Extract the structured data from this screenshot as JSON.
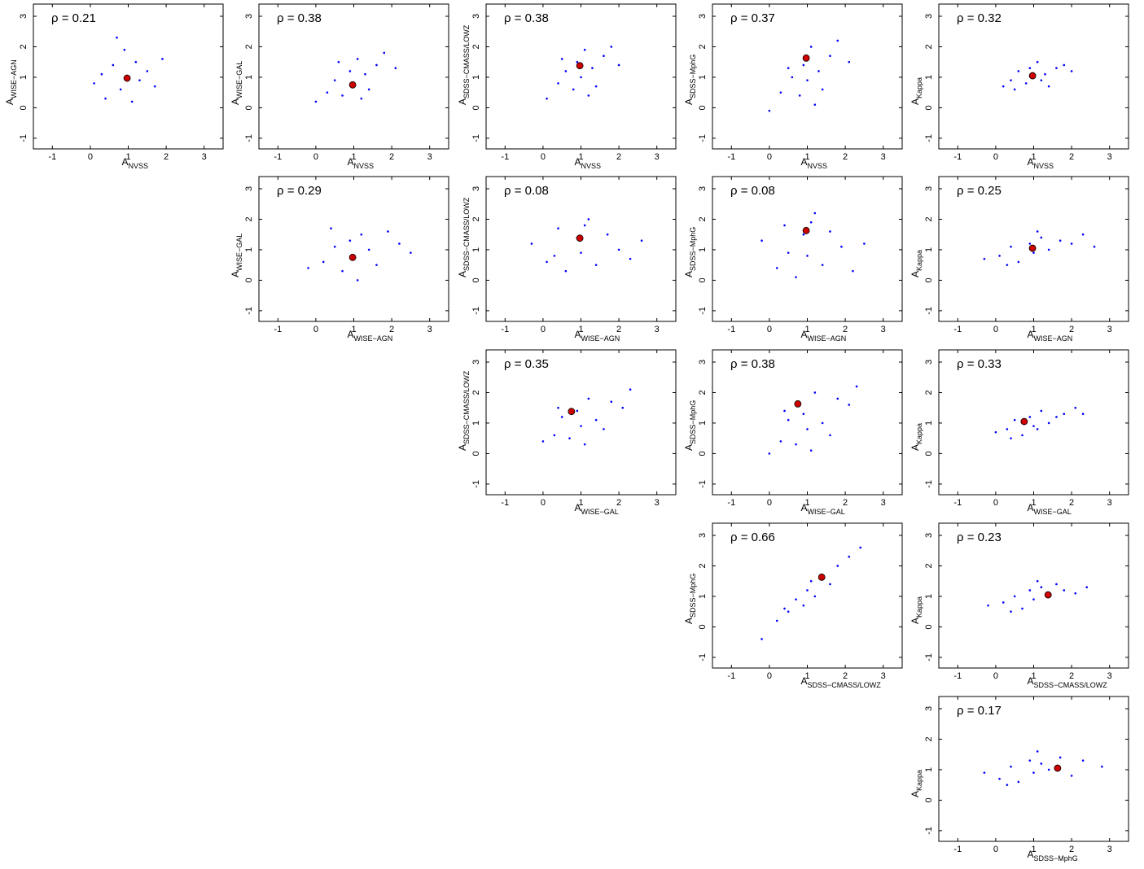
{
  "chart_data": [
    {
      "type": "scatter",
      "annotation": "ρ = 0.21",
      "xlabel": {
        "text": "A",
        "sub": "NVSS"
      },
      "ylabel": {
        "text": "A",
        "sub": "WISE−AGN"
      },
      "xlim": [
        -1.5,
        3.5
      ],
      "ylim": [
        -1.35,
        3.4
      ],
      "xticks": [
        -1,
        0,
        1,
        2,
        3
      ],
      "yticks": [
        -1,
        0,
        1,
        2,
        3
      ],
      "series": [
        {
          "color": "#0000ff",
          "x": [
            0.1,
            0.4,
            0.6,
            0.8,
            0.9,
            1.0,
            1.1,
            1.2,
            1.3,
            1.5,
            1.7,
            0.3,
            0.7,
            1.9
          ],
          "y": [
            0.8,
            0.3,
            1.4,
            0.6,
            1.9,
            1.0,
            0.2,
            1.5,
            0.9,
            1.2,
            0.7,
            1.1,
            2.3,
            1.6
          ]
        },
        {
          "color": "#cc0000",
          "x": [
            0.97
          ],
          "y": [
            0.97
          ]
        }
      ]
    },
    {
      "type": "scatter",
      "annotation": "ρ = 0.38",
      "xlabel": {
        "text": "A",
        "sub": "NVSS"
      },
      "ylabel": {
        "text": "A",
        "sub": "WISE−GAL"
      },
      "xlim": [
        -1.5,
        3.5
      ],
      "ylim": [
        -1.35,
        3.4
      ],
      "xticks": [
        -1,
        0,
        1,
        2,
        3
      ],
      "yticks": [
        -1,
        0,
        1,
        2,
        3
      ],
      "series": [
        {
          "color": "#0000ff",
          "x": [
            0.0,
            0.3,
            0.5,
            0.7,
            0.9,
            1.0,
            1.1,
            1.3,
            1.4,
            1.6,
            1.8,
            0.6,
            1.2,
            2.1
          ],
          "y": [
            0.2,
            0.5,
            0.9,
            0.4,
            1.2,
            0.8,
            1.6,
            1.1,
            0.6,
            1.4,
            1.8,
            1.5,
            0.3,
            1.3
          ]
        },
        {
          "color": "#cc0000",
          "x": [
            0.97
          ],
          "y": [
            0.75
          ]
        }
      ]
    },
    {
      "type": "scatter",
      "annotation": "ρ = 0.38",
      "xlabel": {
        "text": "A",
        "sub": "NVSS"
      },
      "ylabel": {
        "text": "A",
        "sub": "SDSS−CMASS/LOWZ"
      },
      "xlim": [
        -1.5,
        3.5
      ],
      "ylim": [
        -1.35,
        3.4
      ],
      "xticks": [
        -1,
        0,
        1,
        2,
        3
      ],
      "yticks": [
        -1,
        0,
        1,
        2,
        3
      ],
      "series": [
        {
          "color": "#0000ff",
          "x": [
            0.1,
            0.4,
            0.6,
            0.8,
            0.9,
            1.0,
            1.1,
            1.3,
            1.4,
            1.6,
            1.8,
            0.5,
            1.2,
            2.0
          ],
          "y": [
            0.3,
            0.8,
            1.2,
            0.6,
            1.5,
            1.0,
            1.9,
            1.3,
            0.7,
            1.7,
            2.0,
            1.6,
            0.4,
            1.4
          ]
        },
        {
          "color": "#cc0000",
          "x": [
            0.97
          ],
          "y": [
            1.38
          ]
        }
      ]
    },
    {
      "type": "scatter",
      "annotation": "ρ = 0.37",
      "xlabel": {
        "text": "A",
        "sub": "NVSS"
      },
      "ylabel": {
        "text": "A",
        "sub": "SDSS−MphG"
      },
      "xlim": [
        -1.5,
        3.5
      ],
      "ylim": [
        -1.35,
        3.4
      ],
      "xticks": [
        -1,
        0,
        1,
        2,
        3
      ],
      "yticks": [
        -1,
        0,
        1,
        2,
        3
      ],
      "series": [
        {
          "color": "#0000ff",
          "x": [
            0.0,
            0.3,
            0.6,
            0.8,
            0.9,
            1.0,
            1.1,
            1.3,
            1.4,
            1.6,
            1.8,
            0.5,
            1.2,
            2.1
          ],
          "y": [
            -0.1,
            0.5,
            1.0,
            0.4,
            1.4,
            0.9,
            2.0,
            1.2,
            0.6,
            1.7,
            2.2,
            1.3,
            0.1,
            1.5
          ]
        },
        {
          "color": "#cc0000",
          "x": [
            0.97
          ],
          "y": [
            1.63
          ]
        }
      ]
    },
    {
      "type": "scatter",
      "annotation": "ρ = 0.32",
      "xlabel": {
        "text": "A",
        "sub": "NVSS"
      },
      "ylabel": {
        "text": "A",
        "sub": "Kappa"
      },
      "xlim": [
        -1.5,
        3.5
      ],
      "ylim": [
        -1.35,
        3.4
      ],
      "xticks": [
        -1,
        0,
        1,
        2,
        3
      ],
      "yticks": [
        -1,
        0,
        1,
        2,
        3
      ],
      "series": [
        {
          "color": "#0000ff",
          "x": [
            0.2,
            0.4,
            0.6,
            0.8,
            0.9,
            1.0,
            1.1,
            1.3,
            1.4,
            1.6,
            1.8,
            0.5,
            1.2,
            2.0
          ],
          "y": [
            0.7,
            0.9,
            1.2,
            0.8,
            1.3,
            1.0,
            1.5,
            1.1,
            0.7,
            1.3,
            1.4,
            0.6,
            0.9,
            1.2
          ]
        },
        {
          "color": "#cc0000",
          "x": [
            0.97
          ],
          "y": [
            1.05
          ]
        }
      ]
    },
    {
      "type": "scatter",
      "annotation": "ρ = 0.29",
      "xlabel": {
        "text": "A",
        "sub": "WISE−AGN"
      },
      "ylabel": {
        "text": "A",
        "sub": "WISE−GAL"
      },
      "xlim": [
        -1.5,
        3.5
      ],
      "ylim": [
        -1.35,
        3.4
      ],
      "xticks": [
        -1,
        0,
        1,
        2,
        3
      ],
      "yticks": [
        -1,
        0,
        1,
        2,
        3
      ],
      "series": [
        {
          "color": "#0000ff",
          "x": [
            -0.2,
            0.2,
            0.5,
            0.7,
            0.9,
            1.0,
            1.2,
            1.4,
            1.6,
            1.9,
            2.2,
            0.4,
            1.1,
            2.5
          ],
          "y": [
            0.4,
            0.6,
            1.1,
            0.3,
            1.3,
            0.8,
            1.5,
            1.0,
            0.5,
            1.6,
            1.2,
            1.7,
            0.0,
            0.9
          ]
        },
        {
          "color": "#cc0000",
          "x": [
            0.97
          ],
          "y": [
            0.75
          ]
        }
      ]
    },
    {
      "type": "scatter",
      "annotation": "ρ = 0.08",
      "xlabel": {
        "text": "A",
        "sub": "WISE−AGN"
      },
      "ylabel": {
        "text": "A",
        "sub": "SDSS−CMASS/LOWZ"
      },
      "xlim": [
        -1.5,
        3.5
      ],
      "ylim": [
        -1.35,
        3.4
      ],
      "xticks": [
        -1,
        0,
        1,
        2,
        3
      ],
      "yticks": [
        -1,
        0,
        1,
        2,
        3
      ],
      "series": [
        {
          "color": "#0000ff",
          "x": [
            -0.3,
            0.1,
            0.4,
            0.6,
            0.9,
            1.0,
            1.2,
            1.4,
            1.7,
            2.0,
            2.3,
            0.3,
            1.1,
            2.6
          ],
          "y": [
            1.2,
            0.6,
            1.7,
            0.3,
            1.4,
            0.9,
            2.0,
            0.5,
            1.5,
            1.0,
            0.7,
            0.8,
            1.8,
            1.3
          ]
        },
        {
          "color": "#cc0000",
          "x": [
            0.97
          ],
          "y": [
            1.38
          ]
        }
      ]
    },
    {
      "type": "scatter",
      "annotation": "ρ = 0.08",
      "xlabel": {
        "text": "A",
        "sub": "WISE−AGN"
      },
      "ylabel": {
        "text": "A",
        "sub": "SDSS−MphG"
      },
      "xlim": [
        -1.5,
        3.5
      ],
      "ylim": [
        -1.35,
        3.4
      ],
      "xticks": [
        -1,
        0,
        1,
        2,
        3
      ],
      "yticks": [
        -1,
        0,
        1,
        2,
        3
      ],
      "series": [
        {
          "color": "#0000ff",
          "x": [
            -0.2,
            0.2,
            0.4,
            0.7,
            0.9,
            1.0,
            1.2,
            1.4,
            1.6,
            1.9,
            2.2,
            0.5,
            1.1,
            2.5
          ],
          "y": [
            1.3,
            0.4,
            1.8,
            0.1,
            1.5,
            0.8,
            2.2,
            0.5,
            1.6,
            1.1,
            0.3,
            0.9,
            1.9,
            1.2
          ]
        },
        {
          "color": "#cc0000",
          "x": [
            0.97
          ],
          "y": [
            1.63
          ]
        }
      ]
    },
    {
      "type": "scatter",
      "annotation": "ρ = 0.25",
      "xlabel": {
        "text": "A",
        "sub": "WISE−AGN"
      },
      "ylabel": {
        "text": "A",
        "sub": "Kappa"
      },
      "xlim": [
        -1.5,
        3.5
      ],
      "ylim": [
        -1.35,
        3.4
      ],
      "xticks": [
        -1,
        0,
        1,
        2,
        3
      ],
      "yticks": [
        -1,
        0,
        1,
        2,
        3
      ],
      "series": [
        {
          "color": "#0000ff",
          "x": [
            -0.3,
            0.1,
            0.4,
            0.6,
            0.9,
            1.0,
            1.2,
            1.4,
            1.7,
            2.0,
            2.3,
            0.3,
            1.1,
            2.6
          ],
          "y": [
            0.7,
            0.8,
            1.1,
            0.6,
            1.2,
            0.9,
            1.4,
            1.0,
            1.3,
            1.2,
            1.5,
            0.5,
            1.6,
            1.1
          ]
        },
        {
          "color": "#cc0000",
          "x": [
            0.97
          ],
          "y": [
            1.05
          ]
        }
      ]
    },
    {
      "type": "scatter",
      "annotation": "ρ = 0.35",
      "xlabel": {
        "text": "A",
        "sub": "WISE−GAL"
      },
      "ylabel": {
        "text": "A",
        "sub": "SDSS−CMASS/LOWZ"
      },
      "xlim": [
        -1.5,
        3.5
      ],
      "ylim": [
        -1.35,
        3.4
      ],
      "xticks": [
        -1,
        0,
        1,
        2,
        3
      ],
      "yticks": [
        -1,
        0,
        1,
        2,
        3
      ],
      "series": [
        {
          "color": "#0000ff",
          "x": [
            0.0,
            0.3,
            0.5,
            0.7,
            0.9,
            1.0,
            1.2,
            1.4,
            1.6,
            1.8,
            2.1,
            0.4,
            1.1,
            2.3
          ],
          "y": [
            0.4,
            0.6,
            1.2,
            0.5,
            1.4,
            0.9,
            1.8,
            1.1,
            0.8,
            1.7,
            1.5,
            1.5,
            0.3,
            2.1
          ]
        },
        {
          "color": "#cc0000",
          "x": [
            0.75
          ],
          "y": [
            1.38
          ]
        }
      ]
    },
    {
      "type": "scatter",
      "annotation": "ρ = 0.38",
      "xlabel": {
        "text": "A",
        "sub": "WISE−GAL"
      },
      "ylabel": {
        "text": "A",
        "sub": "SDSS−MphG"
      },
      "xlim": [
        -1.5,
        3.5
      ],
      "ylim": [
        -1.35,
        3.4
      ],
      "xticks": [
        -1,
        0,
        1,
        2,
        3
      ],
      "yticks": [
        -1,
        0,
        1,
        2,
        3
      ],
      "series": [
        {
          "color": "#0000ff",
          "x": [
            0.0,
            0.3,
            0.5,
            0.7,
            0.9,
            1.0,
            1.2,
            1.4,
            1.6,
            1.8,
            2.1,
            0.4,
            1.1,
            2.3
          ],
          "y": [
            0.0,
            0.4,
            1.1,
            0.3,
            1.3,
            0.8,
            2.0,
            1.0,
            0.6,
            1.8,
            1.6,
            1.4,
            0.1,
            2.2
          ]
        },
        {
          "color": "#cc0000",
          "x": [
            0.75
          ],
          "y": [
            1.63
          ]
        }
      ]
    },
    {
      "type": "scatter",
      "annotation": "ρ = 0.33",
      "xlabel": {
        "text": "A",
        "sub": "WISE−GAL"
      },
      "ylabel": {
        "text": "A",
        "sub": "Kappa"
      },
      "xlim": [
        -1.5,
        3.5
      ],
      "ylim": [
        -1.35,
        3.4
      ],
      "xticks": [
        -1,
        0,
        1,
        2,
        3
      ],
      "yticks": [
        -1,
        0,
        1,
        2,
        3
      ],
      "series": [
        {
          "color": "#0000ff",
          "x": [
            0.0,
            0.3,
            0.5,
            0.7,
            0.9,
            1.0,
            1.2,
            1.4,
            1.6,
            1.8,
            2.1,
            0.4,
            1.1,
            2.3
          ],
          "y": [
            0.7,
            0.8,
            1.1,
            0.6,
            1.2,
            0.9,
            1.4,
            1.0,
            1.2,
            1.3,
            1.5,
            0.5,
            0.8,
            1.3
          ]
        },
        {
          "color": "#cc0000",
          "x": [
            0.75
          ],
          "y": [
            1.05
          ]
        }
      ]
    },
    {
      "type": "scatter",
      "annotation": "ρ = 0.66",
      "xlabel": {
        "text": "A",
        "sub": "SDSS−CMASS/LOWZ"
      },
      "ylabel": {
        "text": "A",
        "sub": "SDSS−MphG"
      },
      "xlim": [
        -1.5,
        3.5
      ],
      "ylim": [
        -1.35,
        3.4
      ],
      "xticks": [
        -1,
        0,
        1,
        2,
        3
      ],
      "yticks": [
        -1,
        0,
        1,
        2,
        3
      ],
      "series": [
        {
          "color": "#0000ff",
          "x": [
            -0.2,
            0.2,
            0.5,
            0.7,
            0.9,
            1.0,
            1.2,
            1.4,
            1.6,
            1.8,
            2.1,
            0.4,
            1.1,
            2.4
          ],
          "y": [
            -0.4,
            0.2,
            0.5,
            0.9,
            0.7,
            1.2,
            1.0,
            1.6,
            1.4,
            2.0,
            2.3,
            0.6,
            1.5,
            2.6
          ]
        },
        {
          "color": "#cc0000",
          "x": [
            1.38
          ],
          "y": [
            1.63
          ]
        }
      ]
    },
    {
      "type": "scatter",
      "annotation": "ρ = 0.23",
      "xlabel": {
        "text": "A",
        "sub": "SDSS−CMASS/LOWZ"
      },
      "ylabel": {
        "text": "A",
        "sub": "Kappa"
      },
      "xlim": [
        -1.5,
        3.5
      ],
      "ylim": [
        -1.35,
        3.4
      ],
      "xticks": [
        -1,
        0,
        1,
        2,
        3
      ],
      "yticks": [
        -1,
        0,
        1,
        2,
        3
      ],
      "series": [
        {
          "color": "#0000ff",
          "x": [
            -0.2,
            0.2,
            0.5,
            0.7,
            0.9,
            1.0,
            1.2,
            1.4,
            1.6,
            1.8,
            2.1,
            0.4,
            1.1,
            2.4
          ],
          "y": [
            0.7,
            0.8,
            1.0,
            0.6,
            1.2,
            0.9,
            1.3,
            1.0,
            1.4,
            1.2,
            1.1,
            0.5,
            1.5,
            1.3
          ]
        },
        {
          "color": "#cc0000",
          "x": [
            1.38
          ],
          "y": [
            1.05
          ]
        }
      ]
    },
    {
      "type": "scatter",
      "annotation": "ρ = 0.17",
      "xlabel": {
        "text": "A",
        "sub": "SDSS−MphG"
      },
      "ylabel": {
        "text": "A",
        "sub": "Kappa"
      },
      "xlim": [
        -1.5,
        3.5
      ],
      "ylim": [
        -1.35,
        3.4
      ],
      "xticks": [
        -1,
        0,
        1,
        2,
        3
      ],
      "yticks": [
        -1,
        0,
        1,
        2,
        3
      ],
      "series": [
        {
          "color": "#0000ff",
          "x": [
            -0.3,
            0.1,
            0.4,
            0.6,
            0.9,
            1.0,
            1.2,
            1.4,
            1.7,
            2.0,
            2.3,
            0.3,
            1.1,
            2.8
          ],
          "y": [
            0.9,
            0.7,
            1.1,
            0.6,
            1.3,
            0.9,
            1.2,
            1.0,
            1.4,
            0.8,
            1.3,
            0.5,
            1.6,
            1.1
          ]
        },
        {
          "color": "#cc0000",
          "x": [
            1.63
          ],
          "y": [
            1.05
          ]
        }
      ]
    }
  ]
}
